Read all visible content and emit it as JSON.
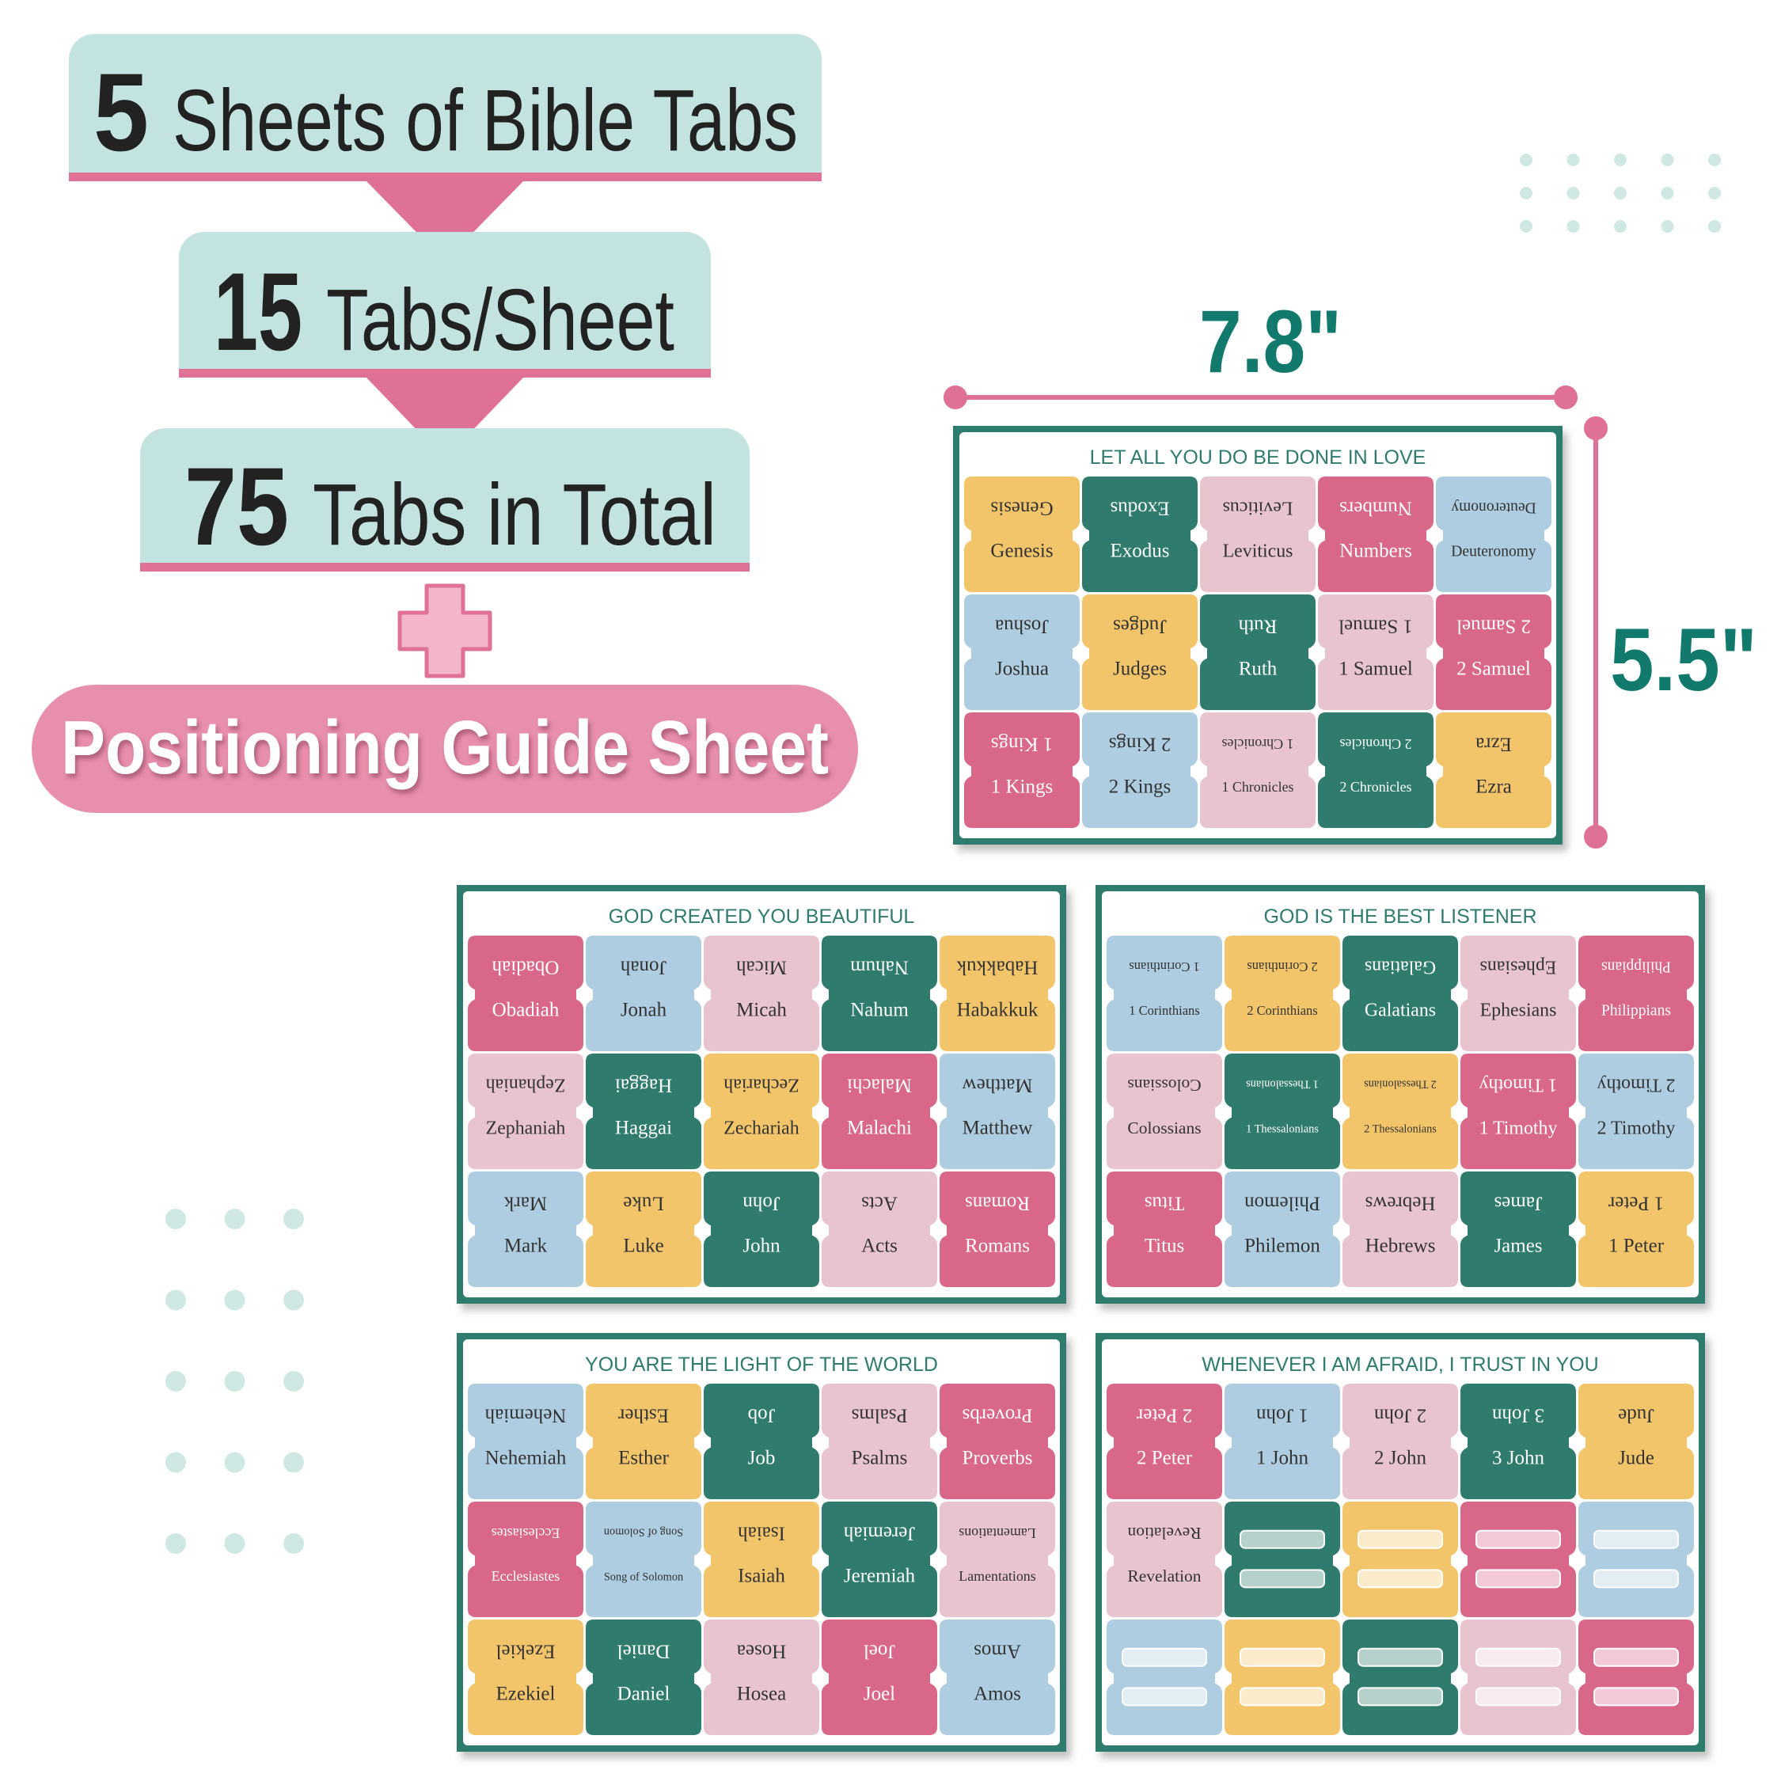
{
  "headline": [
    {
      "count": 5,
      "text": "Sheets of Bible Tabs"
    },
    {
      "count": 15,
      "text": "Tabs/Sheet"
    },
    {
      "count": 75,
      "text": "Tabs in Total"
    }
  ],
  "extra": "Positioning Guide Sheet",
  "dimensions": {
    "width": "7.8\"",
    "height": "5.5\""
  },
  "sheets": [
    {
      "title": "LET ALL YOU DO BE DONE IN LOVE",
      "tabs": [
        "Genesis",
        "Exodus",
        "Leviticus",
        "Numbers",
        "Deuteronomy",
        "Joshua",
        "Judges",
        "Ruth",
        "1 Samuel",
        "2 Samuel",
        "1 Kings",
        "2 Kings",
        "1 Chronicles",
        "2 Chronicles",
        "Ezra"
      ],
      "colors": [
        "#f3c56b",
        "#2f7b6d",
        "#e8c5ce",
        "#d9678a",
        "#aecde0",
        "#aecde0",
        "#f3c56b",
        "#2f7b6d",
        "#e8c5ce",
        "#d9678a",
        "#d9678a",
        "#aecde0",
        "#e8c5ce",
        "#2f7b6d",
        "#f3c56b"
      ]
    },
    {
      "title": "GOD CREATED YOU BEAUTIFUL",
      "tabs": [
        "Obadiah",
        "Jonah",
        "Micah",
        "Nahum",
        "Habakkuk",
        "Zephaniah",
        "Haggai",
        "Zechariah",
        "Malachi",
        "Matthew",
        "Mark",
        "Luke",
        "John",
        "Acts",
        "Romans"
      ],
      "colors": [
        "#d9678a",
        "#aecde0",
        "#e8c5ce",
        "#2f7b6d",
        "#f3c56b",
        "#e8c5ce",
        "#2f7b6d",
        "#f3c56b",
        "#d9678a",
        "#aecde0",
        "#aecde0",
        "#f3c56b",
        "#2f7b6d",
        "#e8c5ce",
        "#d9678a"
      ]
    },
    {
      "title": "GOD IS THE BEST LISTENER",
      "tabs": [
        "1 Corinthians",
        "2 Corinthians",
        "Galatians",
        "Ephesians",
        "Philippians",
        "Colossians",
        "1 Thessalonians",
        "2 Thessalonians",
        "1 Timothy",
        "2 Timothy",
        "Titus",
        "Philemon",
        "Hebrews",
        "James",
        "1 Peter"
      ],
      "colors": [
        "#aecde0",
        "#f3c56b",
        "#2f7b6d",
        "#e8c5ce",
        "#d9678a",
        "#e8c5ce",
        "#2f7b6d",
        "#f3c56b",
        "#d9678a",
        "#aecde0",
        "#d9678a",
        "#aecde0",
        "#e8c5ce",
        "#2f7b6d",
        "#f3c56b"
      ]
    },
    {
      "title": "YOU ARE THE LIGHT OF THE WORLD",
      "tabs": [
        "Nehemiah",
        "Esther",
        "Job",
        "Psalms",
        "Proverbs",
        "Ecclesiastes",
        "Song of Solomon",
        "Isaiah",
        "Jeremiah",
        "Lamentations",
        "Ezekiel",
        "Daniel",
        "Hosea",
        "Joel",
        "Amos"
      ],
      "colors": [
        "#aecde0",
        "#f3c56b",
        "#2f7b6d",
        "#e8c5ce",
        "#d9678a",
        "#d9678a",
        "#aecde0",
        "#f3c56b",
        "#2f7b6d",
        "#e8c5ce",
        "#f3c56b",
        "#2f7b6d",
        "#e8c5ce",
        "#d9678a",
        "#aecde0"
      ]
    },
    {
      "title": "WHENEVER I AM AFRAID, I TRUST IN YOU",
      "tabs": [
        "2 Peter",
        "1 John",
        "2 John",
        "3 John",
        "Jude",
        "Revelation",
        null,
        null,
        null,
        null,
        null,
        null,
        null,
        null,
        null
      ],
      "colors": [
        "#d9678a",
        "#aecde0",
        "#e8c5ce",
        "#2f7b6d",
        "#f3c56b",
        "#e8c5ce",
        "#2f7b6d",
        "#f3c56b",
        "#d9678a",
        "#aecde0",
        "#aecde0",
        "#f3c56b",
        "#2f7b6d",
        "#e8c5ce",
        "#d9678a"
      ]
    }
  ]
}
